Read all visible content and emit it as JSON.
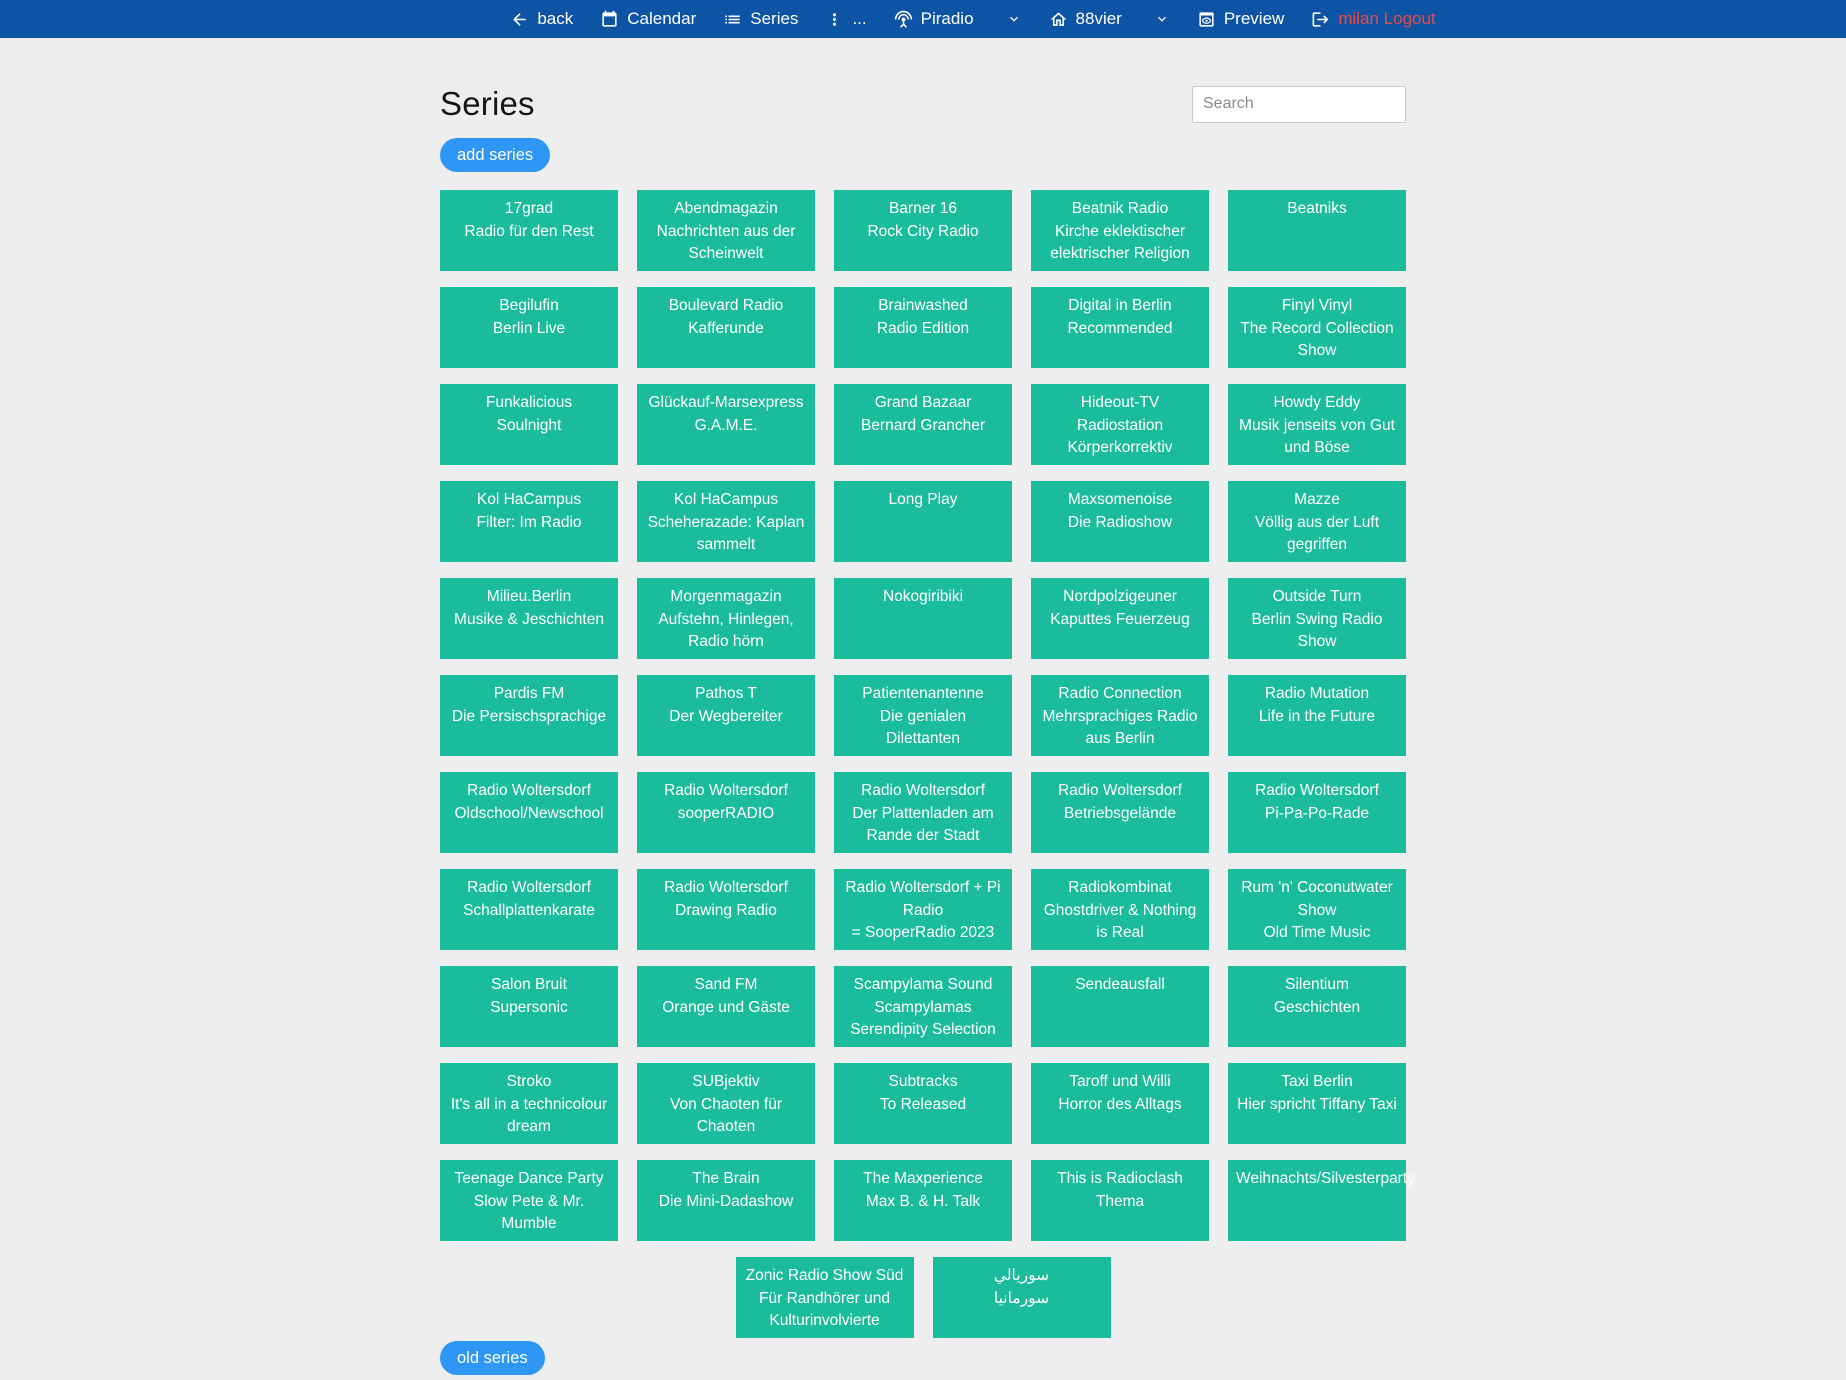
{
  "navbar": {
    "items": [
      {
        "name": "back",
        "icon": "arrow-left",
        "label": "back"
      },
      {
        "name": "calendar",
        "icon": "calendar",
        "label": "Calendar"
      },
      {
        "name": "series",
        "icon": "list",
        "label": "Series"
      },
      {
        "name": "more",
        "icon": "kebab",
        "label": "..."
      },
      {
        "name": "piradio",
        "icon": "antenna",
        "label": "Piradio",
        "chevron": true
      },
      {
        "name": "88vier",
        "icon": "home",
        "label": "88vier",
        "chevron": true
      },
      {
        "name": "preview",
        "icon": "preview",
        "label": "Preview"
      },
      {
        "name": "logout",
        "icon": "logout",
        "label": "milan Logout",
        "danger": true
      }
    ]
  },
  "header": {
    "title": "Series",
    "search_placeholder": "Search",
    "add_button_label": "add series",
    "old_button_label": "old series"
  },
  "series": [
    {
      "title": "17grad",
      "subtitle": "Radio für den Rest"
    },
    {
      "title": "Abendmagazin",
      "subtitle": "Nachrichten aus der Scheinwelt"
    },
    {
      "title": "Barner 16",
      "subtitle": "Rock City Radio"
    },
    {
      "title": "Beatnik Radio",
      "subtitle": "Kirche eklektischer elektrischer Religion"
    },
    {
      "title": "Beatniks",
      "subtitle": ""
    },
    {
      "title": "Begilufin",
      "subtitle": "Berlin Live"
    },
    {
      "title": "Boulevard Radio",
      "subtitle": "Kafferunde"
    },
    {
      "title": "Brainwashed",
      "subtitle": "Radio Edition"
    },
    {
      "title": "Digital in Berlin",
      "subtitle": "Recommended"
    },
    {
      "title": "Finyl Vinyl",
      "subtitle": "The Record Collection Show"
    },
    {
      "title": "Funkalicious",
      "subtitle": "Soulnight"
    },
    {
      "title": "Glückauf-Marsexpress",
      "subtitle": "G.A.M.E."
    },
    {
      "title": "Grand Bazaar",
      "subtitle": "Bernard Grancher"
    },
    {
      "title": "Hideout-TV",
      "subtitle": "Radiostation Körperkorrektiv"
    },
    {
      "title": "Howdy Eddy",
      "subtitle": "Musik jenseits von Gut und Böse"
    },
    {
      "title": "Kol HaCampus",
      "subtitle": "Filter: Im Radio"
    },
    {
      "title": "Kol HaCampus",
      "subtitle": "Scheherazade: Kaplan sammelt"
    },
    {
      "title": "Long Play",
      "subtitle": ""
    },
    {
      "title": "Maxsomenoise",
      "subtitle": "Die Radioshow"
    },
    {
      "title": "Mazze",
      "subtitle": "Völlig aus der Luft gegriffen"
    },
    {
      "title": "Milieu.Berlin",
      "subtitle": "Musike & Jeschichten"
    },
    {
      "title": "Morgenmagazin",
      "subtitle": "Aufstehn, Hinlegen, Radio hörn"
    },
    {
      "title": "Nokogiribiki",
      "subtitle": ""
    },
    {
      "title": "Nordpolzigeuner",
      "subtitle": "Kaputtes Feuerzeug"
    },
    {
      "title": "Outside Turn",
      "subtitle": "Berlin Swing Radio Show"
    },
    {
      "title": "Pardis FM",
      "subtitle": "Die Persischsprachige"
    },
    {
      "title": "Pathos T",
      "subtitle": "Der Wegbereiter"
    },
    {
      "title": "Patientenantenne",
      "subtitle": "Die genialen Dilettanten"
    },
    {
      "title": "Radio Connection",
      "subtitle": "Mehrsprachiges Radio aus Berlin"
    },
    {
      "title": "Radio Mutation",
      "subtitle": "Life in the Future"
    },
    {
      "title": "Radio Woltersdorf",
      "subtitle": "Oldschool/Newschool"
    },
    {
      "title": "Radio Woltersdorf",
      "subtitle": "sooperRADIO"
    },
    {
      "title": "Radio Woltersdorf",
      "subtitle": "Der Plattenladen am Rande der Stadt"
    },
    {
      "title": "Radio Woltersdorf",
      "subtitle": "Betriebsgelände"
    },
    {
      "title": "Radio Woltersdorf",
      "subtitle": "Pi-Pa-Po-Rade"
    },
    {
      "title": "Radio Woltersdorf",
      "subtitle": "Schallplattenkarate"
    },
    {
      "title": "Radio Woltersdorf",
      "subtitle": "Drawing Radio"
    },
    {
      "title": "Radio Woltersdorf + Pi Radio",
      "subtitle": "= SooperRadio 2023"
    },
    {
      "title": "Radiokombinat",
      "subtitle": "Ghostdriver & Nothing is Real"
    },
    {
      "title": "Rum 'n' Coconutwater Show",
      "subtitle": "Old Time Music"
    },
    {
      "title": "Salon Bruit",
      "subtitle": "Supersonic"
    },
    {
      "title": "Sand FM",
      "subtitle": "Orange und Gäste"
    },
    {
      "title": "Scampylama Sound",
      "subtitle": "Scampylamas Serendipity Selection"
    },
    {
      "title": "Sendeausfall",
      "subtitle": ""
    },
    {
      "title": "Silentium",
      "subtitle": "Geschichten"
    },
    {
      "title": "Stroko",
      "subtitle": "It's all in a technicolour dream"
    },
    {
      "title": "SUBjektiv",
      "subtitle": "Von Chaoten für Chaoten"
    },
    {
      "title": "Subtracks",
      "subtitle": "To Released"
    },
    {
      "title": "Taroff und Willi",
      "subtitle": "Horror des Alltags"
    },
    {
      "title": "Taxi Berlin",
      "subtitle": "Hier spricht Tiffany Taxi"
    },
    {
      "title": "Teenage Dance Party",
      "subtitle": "Slow Pete & Mr. Mumble"
    },
    {
      "title": "The Brain",
      "subtitle": "Die Mini-Dadashow"
    },
    {
      "title": "The Maxperience",
      "subtitle": "Max B. & H. Talk"
    },
    {
      "title": "This is Radioclash",
      "subtitle": "Thema"
    },
    {
      "title": "Weihnachts/Silvesterparty",
      "subtitle": ""
    },
    {
      "title": "Zonic Radio Show Süd",
      "subtitle": "Für Randhörer und Kulturinvolvierte"
    },
    {
      "title": "سوريالي",
      "subtitle": "سورمانيا"
    }
  ],
  "colors": {
    "navbar": "#0d54a5",
    "card": "#1bbc9b",
    "button": "#2e96f5",
    "danger": "#e94a49",
    "bg": "#eeeeee"
  }
}
